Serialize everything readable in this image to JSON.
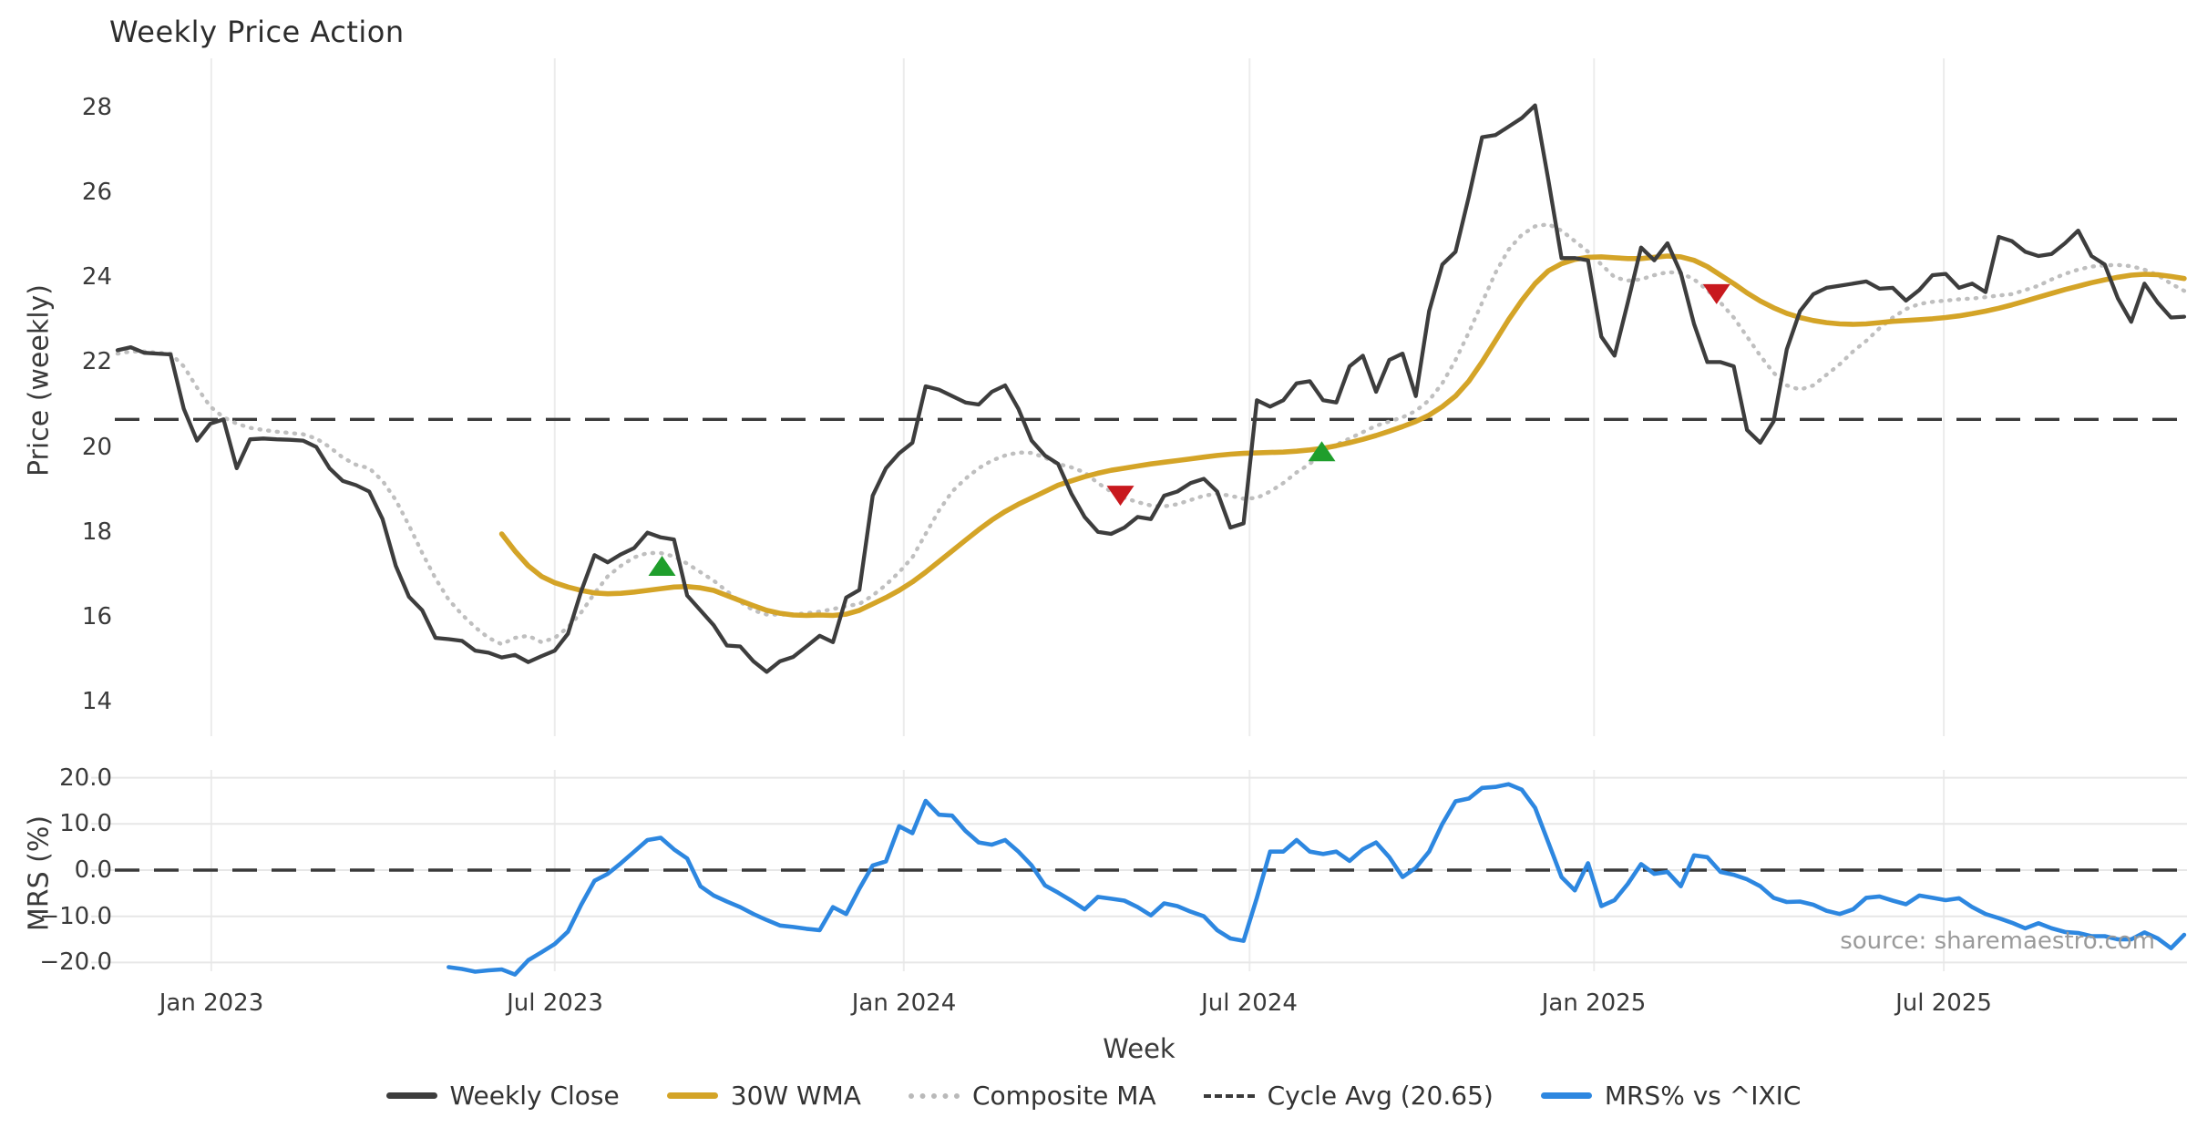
{
  "title": "Weekly Price Action",
  "source_note": "source: sharemaestro.com",
  "colors": {
    "weekly_close": "#3d3d3d",
    "wma_30w": "#d4a427",
    "composite_ma": "#bfbfbf",
    "cycle_avg": "#3a3a3a",
    "mrs_line": "#2d87e0",
    "buy_marker": "#1f9e2c",
    "sell_marker": "#c8191e",
    "gridline": "#ececec",
    "background": "#ffffff"
  },
  "legend": [
    {
      "label": "Weekly Close",
      "style": "solid",
      "color": "#3d3d3d"
    },
    {
      "label": "30W WMA",
      "style": "solid",
      "color": "#d4a427"
    },
    {
      "label": "Composite MA",
      "style": "dotted",
      "color": "#bfbfbf"
    },
    {
      "label": "Cycle Avg (20.65)",
      "style": "dashed",
      "color": "#3a3a3a"
    },
    {
      "label": "MRS% vs ^IXIC",
      "style": "solid",
      "color": "#2d87e0"
    }
  ],
  "axes": {
    "price": {
      "label": "Price (weekly)",
      "ticks": [
        14,
        16,
        18,
        20,
        22,
        24,
        26,
        28
      ],
      "ylim": [
        13.1,
        29.2
      ]
    },
    "mrs": {
      "label": "MRS (%)",
      "ticks": [
        {
          "label": "20.0",
          "value": 20
        },
        {
          "label": "10.0",
          "value": 10
        },
        {
          "label": "0.0",
          "value": 0
        },
        {
          "label": "−10.0",
          "value": -10
        },
        {
          "label": "−20.0",
          "value": -20
        }
      ],
      "ylim": [
        -22.3,
        21.7
      ]
    },
    "x": {
      "label": "Week",
      "weeks_total": 156,
      "ticks": [
        {
          "label": "Jan 2023",
          "week": 7.08
        },
        {
          "label": "Jul 2023",
          "week": 33.0
        },
        {
          "label": "Jan 2024",
          "week": 59.35
        },
        {
          "label": "Jul 2024",
          "week": 85.45
        },
        {
          "label": "Jan 2025",
          "week": 111.45
        },
        {
          "label": "Jul 2025",
          "week": 137.85
        }
      ]
    }
  },
  "chart_data": {
    "type": "line",
    "title": "Weekly Price Action",
    "xlabel": "Week",
    "grid": {
      "vertical": true,
      "horizontal_bottom_panel": true
    },
    "legend_position": "bottom-center",
    "panels": [
      {
        "id": "price",
        "ylabel": "Price (weekly)",
        "reference_lines": [
          {
            "name": "Cycle Avg",
            "value": 20.65,
            "style": "dashed",
            "color": "#3a3a3a"
          }
        ],
        "series": [
          {
            "name": "Weekly Close",
            "color": "#3d3d3d",
            "style": "solid",
            "start_week": 0,
            "values": [
              22.28,
              22.35,
              22.22,
              22.2,
              22.18,
              20.9,
              20.15,
              20.55,
              20.65,
              19.5,
              20.18,
              20.2,
              20.18,
              20.17,
              20.15,
              20.0,
              19.5,
              19.2,
              19.1,
              18.95,
              18.3,
              17.2,
              16.47,
              16.15,
              15.5,
              15.47,
              15.43,
              15.2,
              15.15,
              15.04,
              15.1,
              14.93,
              15.07,
              15.2,
              15.6,
              16.6,
              17.45,
              17.28,
              17.47,
              17.62,
              17.98,
              17.87,
              17.82,
              16.5,
              16.15,
              15.8,
              15.32,
              15.3,
              14.95,
              14.7,
              14.95,
              15.05,
              15.3,
              15.55,
              15.4,
              16.45,
              16.63,
              18.85,
              19.5,
              19.85,
              20.1,
              21.43,
              21.35,
              21.2,
              21.05,
              21.0,
              21.3,
              21.45,
              20.9,
              20.15,
              19.8,
              19.6,
              18.9,
              18.35,
              18.0,
              17.95,
              18.1,
              18.35,
              18.3,
              18.85,
              18.95,
              19.15,
              19.25,
              18.95,
              18.1,
              18.2,
              21.1,
              20.95,
              21.1,
              21.5,
              21.55,
              21.1,
              21.05,
              21.9,
              22.15,
              21.3,
              22.05,
              22.2,
              21.2,
              23.2,
              24.3,
              24.6,
              25.9,
              27.3,
              27.35,
              27.55,
              27.75,
              28.05,
              26.3,
              24.45,
              24.45,
              24.4,
              22.6,
              22.15,
              23.4,
              24.7,
              24.4,
              24.8,
              24.1,
              22.9,
              22.0,
              22.0,
              21.9,
              20.4,
              20.1,
              20.6,
              22.3,
              23.2,
              23.6,
              23.75,
              23.8,
              23.85,
              23.9,
              23.73,
              23.75,
              23.45,
              23.7,
              24.05,
              24.08,
              23.75,
              23.85,
              23.65,
              24.95,
              24.85,
              24.6,
              24.5,
              24.55,
              24.8,
              25.1,
              24.5,
              24.3,
              23.5,
              22.95,
              23.85,
              23.4,
              23.05,
              23.07
            ]
          },
          {
            "name": "30W WMA",
            "color": "#d4a427",
            "style": "solid",
            "start_week": 29,
            "values": [
              17.95,
              17.55,
              17.2,
              16.95,
              16.8,
              16.7,
              16.62,
              16.56,
              16.54,
              16.55,
              16.58,
              16.62,
              16.66,
              16.7,
              16.71,
              16.68,
              16.62,
              16.5,
              16.38,
              16.26,
              16.15,
              16.08,
              16.04,
              16.03,
              16.04,
              16.03,
              16.06,
              16.15,
              16.3,
              16.45,
              16.62,
              16.82,
              17.05,
              17.3,
              17.55,
              17.8,
              18.05,
              18.28,
              18.48,
              18.65,
              18.8,
              18.95,
              19.1,
              19.2,
              19.3,
              19.38,
              19.45,
              19.5,
              19.55,
              19.6,
              19.64,
              19.68,
              19.72,
              19.76,
              19.8,
              19.83,
              19.85,
              19.86,
              19.87,
              19.88,
              19.9,
              19.93,
              19.97,
              20.03,
              20.1,
              20.18,
              20.27,
              20.37,
              20.48,
              20.6,
              20.75,
              20.95,
              21.2,
              21.55,
              22.0,
              22.5,
              23.0,
              23.45,
              23.85,
              24.15,
              24.32,
              24.42,
              24.47,
              24.48,
              24.46,
              24.44,
              24.44,
              24.47,
              24.5,
              24.48,
              24.4,
              24.25,
              24.05,
              23.85,
              23.63,
              23.44,
              23.28,
              23.15,
              23.05,
              22.98,
              22.93,
              22.9,
              22.89,
              22.9,
              22.93,
              22.96,
              22.98,
              23.0,
              23.02,
              23.05,
              23.09,
              23.14,
              23.2,
              23.27,
              23.35,
              23.44,
              23.53,
              23.62,
              23.71,
              23.79,
              23.87,
              23.94,
              24.0,
              24.05,
              24.07,
              24.06,
              24.02,
              23.97
            ]
          },
          {
            "name": "Composite MA",
            "color": "#bfbfbf",
            "style": "dotted",
            "start_week": 0,
            "values": [
              22.2,
              22.25,
              22.25,
              22.22,
              22.2,
              21.9,
              21.4,
              20.95,
              20.7,
              20.55,
              20.45,
              20.4,
              20.36,
              20.33,
              20.3,
              20.2,
              20.0,
              19.75,
              19.58,
              19.5,
              19.2,
              18.75,
              18.15,
              17.5,
              16.9,
              16.4,
              16.05,
              15.75,
              15.5,
              15.35,
              15.5,
              15.55,
              15.4,
              15.5,
              15.75,
              16.1,
              16.55,
              16.95,
              17.2,
              17.4,
              17.5,
              17.5,
              17.42,
              17.25,
              17.05,
              16.85,
              16.6,
              16.35,
              16.15,
              16.05,
              16.05,
              16.05,
              16.08,
              16.12,
              16.18,
              16.25,
              16.3,
              16.5,
              16.75,
              17.05,
              17.4,
              17.95,
              18.5,
              18.95,
              19.25,
              19.5,
              19.68,
              19.8,
              19.87,
              19.86,
              19.75,
              19.6,
              19.52,
              19.4,
              19.15,
              18.95,
              18.8,
              18.7,
              18.62,
              18.6,
              18.65,
              18.75,
              18.85,
              18.9,
              18.85,
              18.78,
              18.8,
              18.95,
              19.15,
              19.4,
              19.6,
              19.9,
              20.05,
              20.2,
              20.35,
              20.5,
              20.6,
              20.7,
              20.85,
              21.1,
              21.5,
              22.05,
              22.7,
              23.4,
              24.1,
              24.65,
              25.0,
              25.2,
              25.25,
              25.1,
              24.85,
              24.6,
              24.3,
              24.0,
              23.92,
              23.95,
              24.05,
              24.12,
              24.1,
              23.95,
              23.7,
              23.4,
              23.05,
              22.6,
              22.15,
              21.75,
              21.45,
              21.35,
              21.45,
              21.7,
              21.95,
              22.25,
              22.5,
              22.8,
              23.05,
              23.25,
              23.37,
              23.42,
              23.45,
              23.48,
              23.5,
              23.53,
              23.57,
              23.6,
              23.7,
              23.8,
              23.95,
              24.08,
              24.18,
              24.25,
              24.28,
              24.29,
              24.26,
              24.18,
              24.05,
              23.85,
              23.68
            ]
          }
        ],
        "markers": [
          {
            "type": "buy",
            "shape": "triangle-up",
            "color": "#1f9e2c",
            "week": 41.1,
            "value": 17.2
          },
          {
            "type": "sell",
            "shape": "triangle-down",
            "color": "#c8191e",
            "week": 75.7,
            "value": 18.85
          },
          {
            "type": "buy",
            "shape": "triangle-up",
            "color": "#1f9e2c",
            "week": 90.9,
            "value": 19.9
          },
          {
            "type": "sell",
            "shape": "triangle-down",
            "color": "#c8191e",
            "week": 120.7,
            "value": 23.6
          }
        ]
      },
      {
        "id": "mrs",
        "ylabel": "MRS (%)",
        "reference_lines": [
          {
            "name": "zero",
            "value": 0,
            "style": "dashed",
            "color": "#3a3a3a"
          }
        ],
        "series": [
          {
            "name": "MRS% vs ^IXIC",
            "color": "#2d87e0",
            "style": "solid",
            "start_week": 25,
            "values": [
              -21.0,
              -21.4,
              -22.0,
              -21.7,
              -21.5,
              -22.6,
              -19.5,
              -17.8,
              -16.0,
              -13.3,
              -7.5,
              -2.3,
              -0.8,
              1.5,
              4.0,
              6.5,
              7.0,
              4.5,
              2.5,
              -3.5,
              -5.5,
              -6.8,
              -8.0,
              -9.5,
              -10.8,
              -12.0,
              -12.3,
              -12.7,
              -13.0,
              -8.0,
              -9.5,
              -4.0,
              1.0,
              1.9,
              9.5,
              8.0,
              15.0,
              12.0,
              11.8,
              8.5,
              6.0,
              5.5,
              6.5,
              4.0,
              1.0,
              -3.3,
              -4.9,
              -6.6,
              -8.5,
              -5.8,
              -6.2,
              -6.6,
              -8.0,
              -9.8,
              -7.2,
              -7.8,
              -9.0,
              -10.0,
              -13.0,
              -14.8,
              -15.3,
              -6.0,
              4.0,
              4.0,
              6.5,
              4.0,
              3.5,
              4.0,
              2.0,
              4.5,
              6.0,
              2.8,
              -1.5,
              0.5,
              4.0,
              10.0,
              14.9,
              15.5,
              17.8,
              18.0,
              18.6,
              17.4,
              13.5,
              6.0,
              -1.5,
              -4.4,
              1.5,
              -7.8,
              -6.5,
              -3.0,
              1.3,
              -0.8,
              -0.4,
              -3.5,
              3.2,
              2.8,
              -0.4,
              -1.0,
              -2.0,
              -3.5,
              -6.0,
              -6.9,
              -6.8,
              -7.5,
              -8.8,
              -9.5,
              -8.5,
              -6.0,
              -5.7,
              -6.6,
              -7.4,
              -5.5,
              -6.0,
              -6.5,
              -6.1,
              -8.0,
              -9.5,
              -10.4,
              -11.4,
              -12.6,
              -11.5,
              -12.6,
              -13.4,
              -13.6,
              -14.3,
              -14.3,
              -15.0,
              -15.0,
              -13.5,
              -14.8,
              -16.9,
              -14.0
            ]
          }
        ]
      }
    ]
  }
}
